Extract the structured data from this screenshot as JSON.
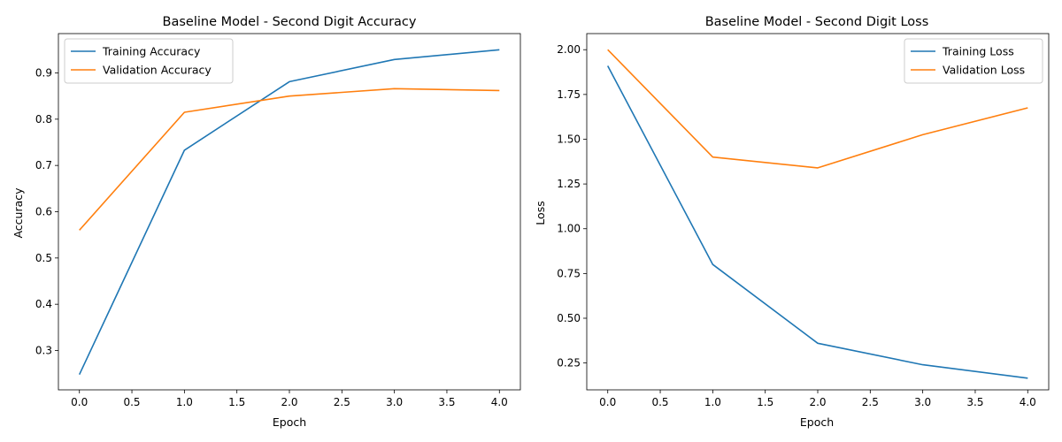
{
  "figure": {
    "background": "#ffffff"
  },
  "chart_data": [
    {
      "type": "line",
      "title": "Baseline Model - Second Digit Accuracy",
      "xlabel": "Epoch",
      "ylabel": "Accuracy",
      "xlim": [
        -0.2,
        4.2
      ],
      "ylim": [
        0.215,
        0.985
      ],
      "xticks": [
        0.0,
        0.5,
        1.0,
        1.5,
        2.0,
        2.5,
        3.0,
        3.5,
        4.0
      ],
      "xtick_labels": [
        "0.0",
        "0.5",
        "1.0",
        "1.5",
        "2.0",
        "2.5",
        "3.0",
        "3.5",
        "4.0"
      ],
      "yticks": [
        0.3,
        0.4,
        0.5,
        0.6,
        0.7,
        0.8,
        0.9
      ],
      "ytick_labels": [
        "0.3",
        "0.4",
        "0.5",
        "0.6",
        "0.7",
        "0.8",
        "0.9"
      ],
      "grid": false,
      "legend_position": "top-left",
      "series": [
        {
          "name": "Training Accuracy",
          "color": "#1f77b4",
          "x": [
            0,
            1,
            2,
            3,
            4
          ],
          "y": [
            0.248,
            0.733,
            0.881,
            0.929,
            0.95
          ]
        },
        {
          "name": "Validation Accuracy",
          "color": "#ff7f0e",
          "x": [
            0,
            1,
            2,
            3,
            4
          ],
          "y": [
            0.56,
            0.815,
            0.85,
            0.866,
            0.862
          ]
        }
      ]
    },
    {
      "type": "line",
      "title": "Baseline Model - Second Digit Loss",
      "xlabel": "Epoch",
      "ylabel": "Loss",
      "xlim": [
        -0.2,
        4.2
      ],
      "ylim": [
        0.1,
        2.09
      ],
      "xticks": [
        0.0,
        0.5,
        1.0,
        1.5,
        2.0,
        2.5,
        3.0,
        3.5,
        4.0
      ],
      "xtick_labels": [
        "0.0",
        "0.5",
        "1.0",
        "1.5",
        "2.0",
        "2.5",
        "3.0",
        "3.5",
        "4.0"
      ],
      "yticks": [
        0.25,
        0.5,
        0.75,
        1.0,
        1.25,
        1.5,
        1.75,
        2.0
      ],
      "ytick_labels": [
        "0.25",
        "0.50",
        "0.75",
        "1.00",
        "1.25",
        "1.50",
        "1.75",
        "2.00"
      ],
      "grid": false,
      "legend_position": "top-right",
      "series": [
        {
          "name": "Training Loss",
          "color": "#1f77b4",
          "x": [
            0,
            1,
            2,
            3,
            4
          ],
          "y": [
            1.91,
            0.8,
            0.36,
            0.24,
            0.165
          ]
        },
        {
          "name": "Validation Loss",
          "color": "#ff7f0e",
          "x": [
            0,
            1,
            2,
            3,
            4
          ],
          "y": [
            2.0,
            1.4,
            1.34,
            1.525,
            1.675
          ]
        }
      ]
    }
  ]
}
